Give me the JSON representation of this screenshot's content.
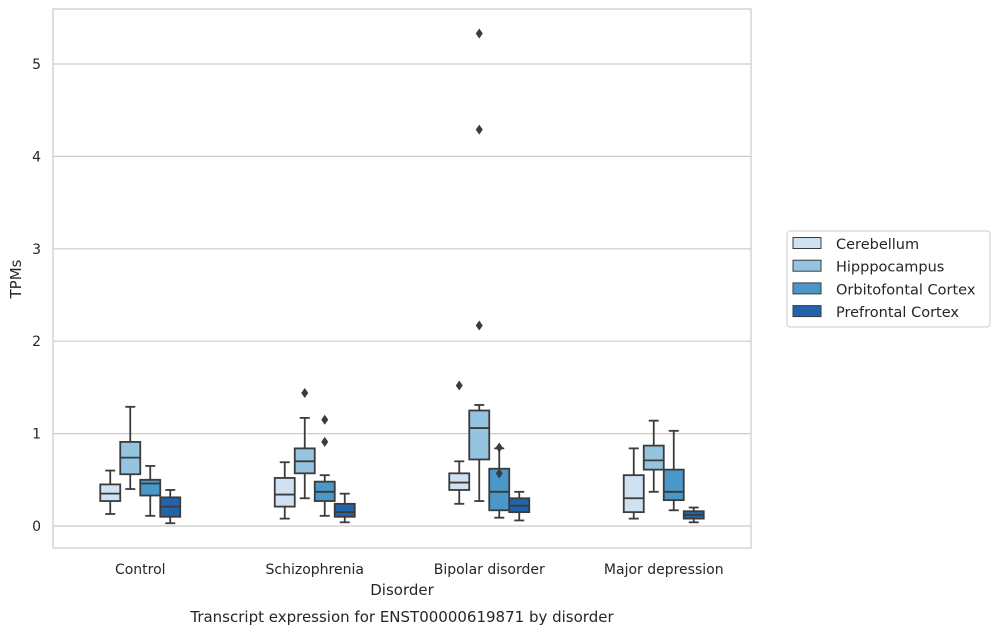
{
  "chart_data": {
    "type": "box",
    "title": "Transcript expression for ENST00000619871 by disorder",
    "xlabel": "Disorder",
    "ylabel": "TPMs",
    "ylim": [
      -0.23,
      5.6
    ],
    "yticks": [
      0,
      1,
      2,
      3,
      4,
      5
    ],
    "grid": "horizontal",
    "legend_position": "right",
    "categories": [
      "Control",
      "Schizophrenia",
      "Bipolar disorder",
      "Major depression"
    ],
    "series": [
      {
        "name": "Cerebellum",
        "color": "#d0e1f2",
        "boxes": [
          {
            "whislo": 0.13,
            "q1": 0.27,
            "med": 0.35,
            "q3": 0.45,
            "whishi": 0.6,
            "fliers": []
          },
          {
            "whislo": 0.08,
            "q1": 0.21,
            "med": 0.34,
            "q3": 0.52,
            "whishi": 0.69,
            "fliers": []
          },
          {
            "whislo": 0.24,
            "q1": 0.39,
            "med": 0.47,
            "q3": 0.57,
            "whishi": 0.7,
            "fliers": [
              1.52
            ]
          },
          {
            "whislo": 0.08,
            "q1": 0.15,
            "med": 0.3,
            "q3": 0.55,
            "whishi": 0.84,
            "fliers": []
          }
        ]
      },
      {
        "name": "Hipppocampus",
        "color": "#94c4df",
        "boxes": [
          {
            "whislo": 0.4,
            "q1": 0.56,
            "med": 0.74,
            "q3": 0.91,
            "whishi": 1.29,
            "fliers": []
          },
          {
            "whislo": 0.3,
            "q1": 0.57,
            "med": 0.7,
            "q3": 0.84,
            "whishi": 1.17,
            "fliers": [
              1.44
            ]
          },
          {
            "whislo": 0.27,
            "q1": 0.72,
            "med": 1.06,
            "q3": 1.25,
            "whishi": 1.31,
            "fliers": [
              2.17,
              4.29,
              5.33
            ]
          },
          {
            "whislo": 0.37,
            "q1": 0.61,
            "med": 0.71,
            "q3": 0.87,
            "whishi": 1.14,
            "fliers": []
          }
        ]
      },
      {
        "name": "Orbitofontal Cortex",
        "color": "#4a98c9",
        "boxes": [
          {
            "whislo": 0.11,
            "q1": 0.33,
            "med": 0.46,
            "q3": 0.5,
            "whishi": 0.65,
            "fliers": []
          },
          {
            "whislo": 0.11,
            "q1": 0.27,
            "med": 0.37,
            "q3": 0.48,
            "whishi": 0.55,
            "fliers": [
              0.91,
              1.15
            ]
          },
          {
            "whislo": 0.09,
            "q1": 0.17,
            "med": 0.37,
            "q3": 0.62,
            "whishi": 0.84,
            "fliers": [
              0.57,
              0.85
            ]
          },
          {
            "whislo": 0.17,
            "q1": 0.28,
            "med": 0.37,
            "q3": 0.61,
            "whishi": 1.03,
            "fliers": []
          }
        ]
      },
      {
        "name": "Prefrontal Cortex",
        "color": "#2164ab",
        "boxes": [
          {
            "whislo": 0.03,
            "q1": 0.1,
            "med": 0.21,
            "q3": 0.31,
            "whishi": 0.39,
            "fliers": []
          },
          {
            "whislo": 0.04,
            "q1": 0.1,
            "med": 0.15,
            "q3": 0.24,
            "whishi": 0.35,
            "fliers": []
          },
          {
            "whislo": 0.06,
            "q1": 0.15,
            "med": 0.22,
            "q3": 0.3,
            "whishi": 0.37,
            "fliers": []
          },
          {
            "whislo": 0.04,
            "q1": 0.08,
            "med": 0.12,
            "q3": 0.16,
            "whishi": 0.2,
            "fliers": []
          }
        ]
      }
    ]
  }
}
